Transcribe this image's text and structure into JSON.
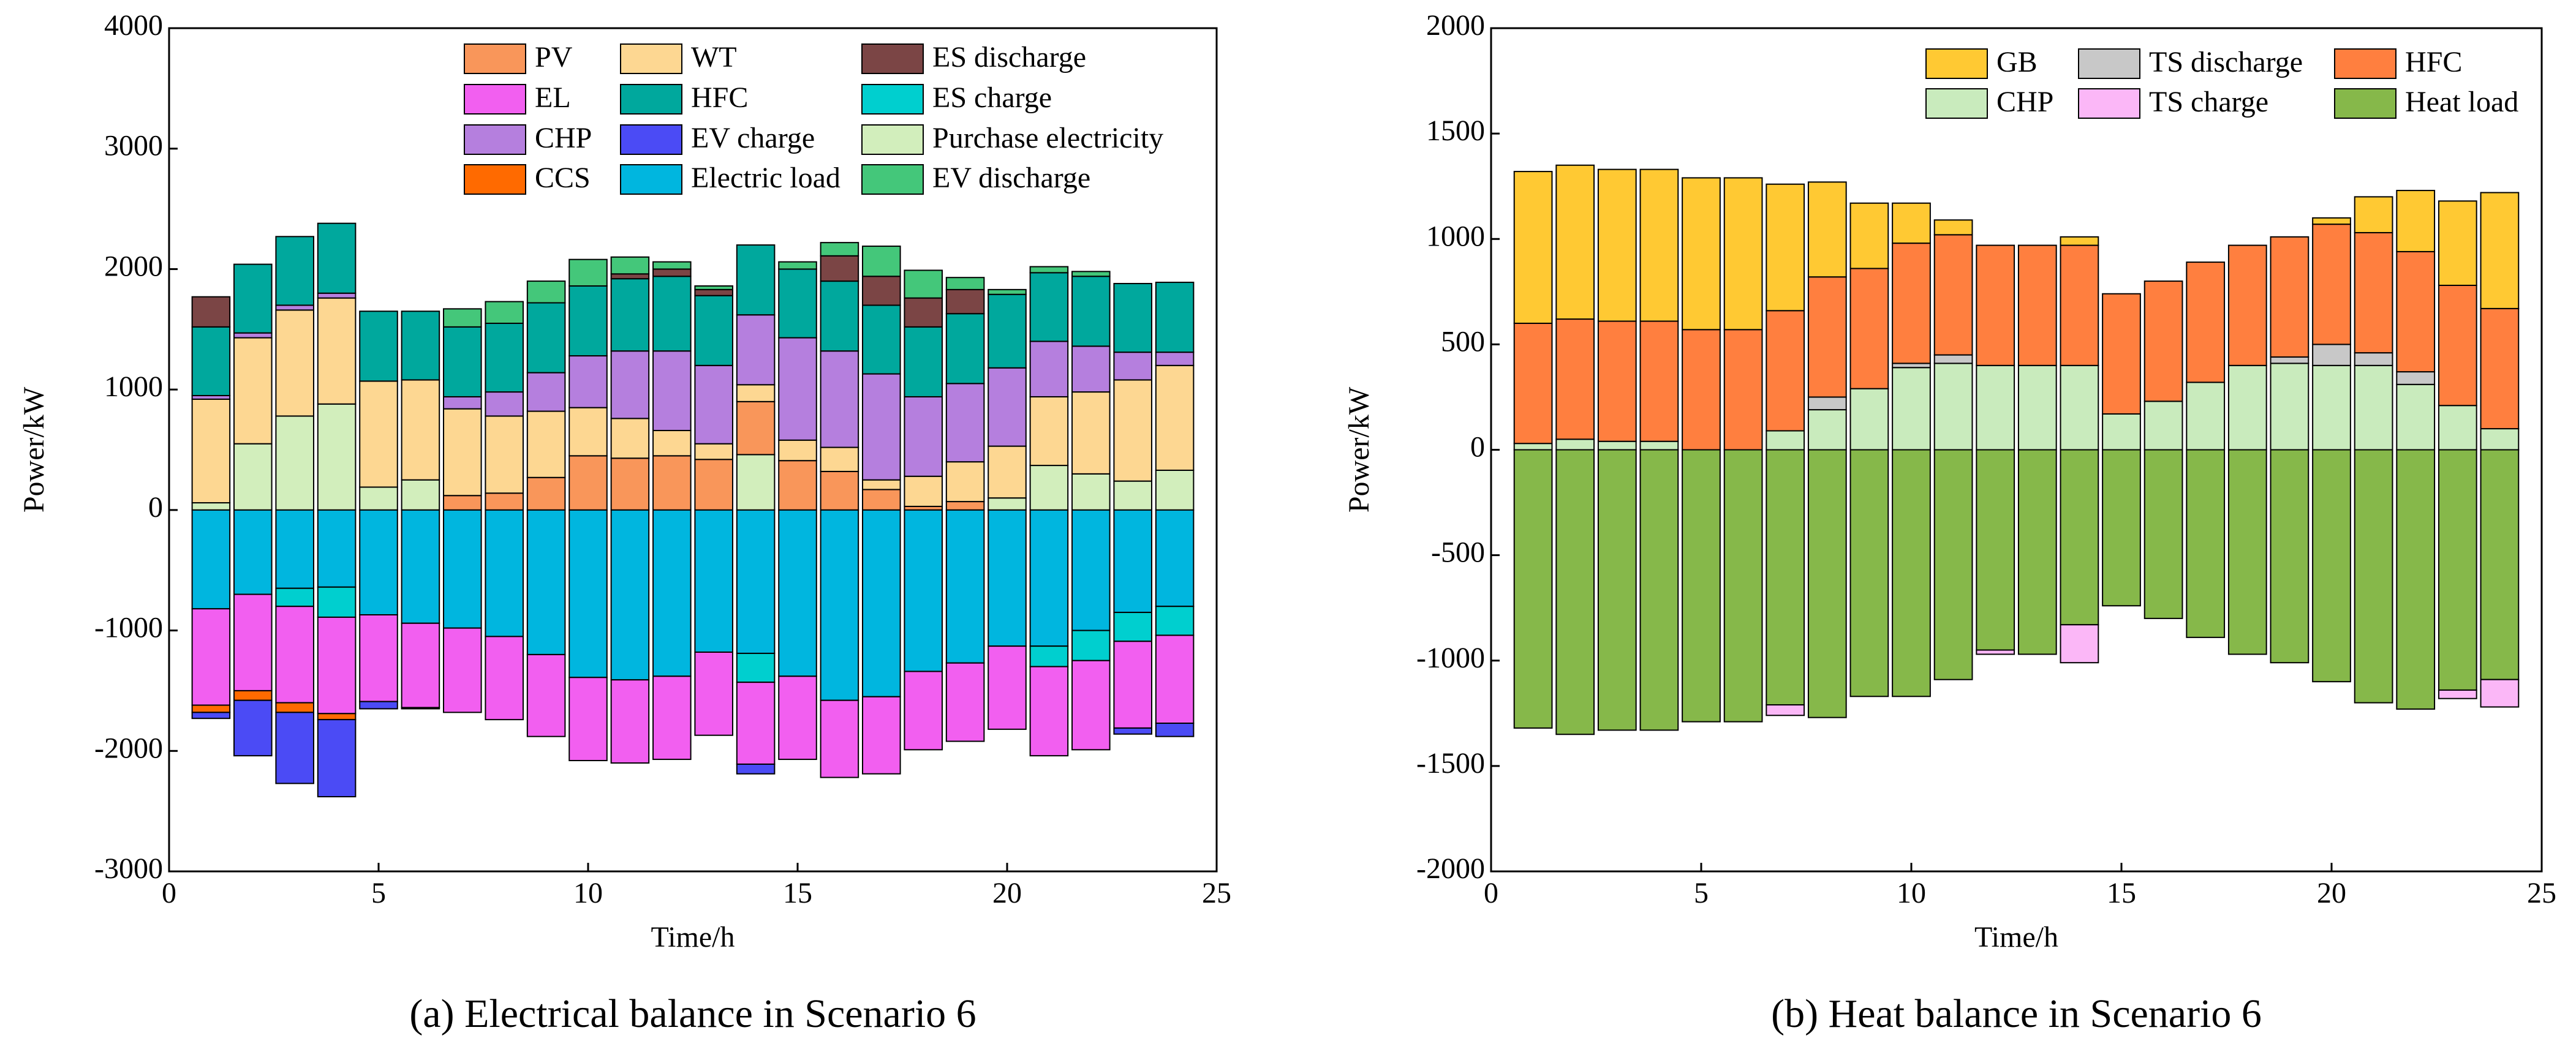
{
  "chart_data": [
    {
      "type": "stacked_bar",
      "caption": "(a) Electrical balance in Scenario 6",
      "xlabel": "Time/h",
      "ylabel": "Power/kW",
      "x": [
        1,
        2,
        3,
        4,
        5,
        6,
        7,
        8,
        9,
        10,
        11,
        12,
        13,
        14,
        15,
        16,
        17,
        18,
        19,
        20,
        21,
        22,
        23,
        24
      ],
      "xlim": [
        0,
        25
      ],
      "xticks": [
        0,
        5,
        10,
        15,
        20,
        25
      ],
      "ylim": [
        -3000,
        4000
      ],
      "yticks": [
        -3000,
        -2000,
        -1000,
        0,
        1000,
        2000,
        3000,
        4000
      ],
      "series": [
        {
          "name": "PV",
          "color": "#f9965a",
          "values": [
            0,
            0,
            0,
            0,
            0,
            0,
            120,
            140,
            270,
            450,
            430,
            450,
            420,
            440,
            410,
            320,
            170,
            30,
            70,
            0,
            0,
            0,
            0,
            0
          ]
        },
        {
          "name": "EL",
          "color": "#f25ff0",
          "values": [
            -800,
            -800,
            -800,
            -800,
            -720,
            -700,
            -700,
            -690,
            -680,
            -690,
            -690,
            -690,
            -690,
            -680,
            -690,
            -640,
            -640,
            -650,
            -650,
            -690,
            -740,
            -740,
            -720,
            -730
          ]
        },
        {
          "name": "CHP",
          "color": "#b57fde",
          "values": [
            30,
            40,
            40,
            40,
            0,
            0,
            100,
            200,
            320,
            430,
            560,
            660,
            650,
            580,
            850,
            800,
            880,
            660,
            650,
            650,
            460,
            380,
            230,
            110
          ]
        },
        {
          "name": "CCS",
          "color": "#ff6a00",
          "values": [
            -60,
            -80,
            -80,
            -50,
            0,
            -10,
            0,
            0,
            0,
            0,
            0,
            0,
            0,
            0,
            0,
            0,
            0,
            0,
            0,
            0,
            0,
            0,
            0,
            0
          ]
        },
        {
          "name": "WT",
          "color": "#fdd792",
          "values": [
            860,
            880,
            880,
            880,
            880,
            830,
            720,
            640,
            550,
            400,
            330,
            210,
            130,
            140,
            170,
            200,
            80,
            250,
            330,
            430,
            570,
            680,
            840,
            870
          ]
        },
        {
          "name": "HFC",
          "color": "#00a89d",
          "values": [
            570,
            570,
            570,
            580,
            580,
            570,
            580,
            570,
            580,
            580,
            600,
            620,
            580,
            580,
            570,
            580,
            570,
            580,
            580,
            610,
            570,
            580,
            570,
            580
          ]
        },
        {
          "name": "EV charge",
          "color": "#4b4bf5",
          "values": [
            -50,
            -460,
            -590,
            -640,
            -60,
            0,
            0,
            0,
            0,
            0,
            0,
            0,
            0,
            -80,
            0,
            0,
            0,
            0,
            0,
            0,
            0,
            0,
            -50,
            -110
          ]
        },
        {
          "name": "Electric load",
          "color": "#00b6df",
          "values": [
            -820,
            -700,
            -650,
            -640,
            -870,
            -940,
            -980,
            -1050,
            -1200,
            -1390,
            -1410,
            -1380,
            -1180,
            -1190,
            -1380,
            -1580,
            -1550,
            -1340,
            -1270,
            -1130,
            -1130,
            -1000,
            -850,
            -800
          ]
        },
        {
          "name": "ES discharge",
          "color": "#7b4545",
          "values": [
            250,
            0,
            0,
            0,
            0,
            0,
            0,
            0,
            0,
            0,
            40,
            60,
            50,
            0,
            0,
            210,
            240,
            240,
            200,
            0,
            0,
            0,
            0,
            0
          ]
        },
        {
          "name": "ES charge",
          "color": "#00cfcf",
          "values": [
            0,
            0,
            -150,
            -250,
            0,
            0,
            0,
            0,
            0,
            0,
            0,
            0,
            0,
            -240,
            0,
            0,
            0,
            0,
            0,
            0,
            -170,
            -250,
            -240,
            -240
          ]
        },
        {
          "name": "Purchase electricity",
          "color": "#d2eebc",
          "values": [
            60,
            550,
            780,
            880,
            190,
            250,
            0,
            0,
            0,
            0,
            0,
            0,
            0,
            460,
            0,
            0,
            0,
            0,
            0,
            100,
            370,
            300,
            240,
            330
          ]
        },
        {
          "name": "EV discharge",
          "color": "#44c77a",
          "values": [
            0,
            0,
            0,
            0,
            0,
            0,
            150,
            180,
            180,
            220,
            140,
            60,
            30,
            0,
            60,
            110,
            250,
            230,
            100,
            40,
            50,
            40,
            0,
            0
          ]
        }
      ]
    },
    {
      "type": "stacked_bar",
      "caption": "(b) Heat balance in Scenario 6",
      "xlabel": "Time/h",
      "ylabel": "Power/kW",
      "x": [
        1,
        2,
        3,
        4,
        5,
        6,
        7,
        8,
        9,
        10,
        11,
        12,
        13,
        14,
        15,
        16,
        17,
        18,
        19,
        20,
        21,
        22,
        23,
        24
      ],
      "xlim": [
        0,
        25
      ],
      "xticks": [
        0,
        5,
        10,
        15,
        20,
        25
      ],
      "ylim": [
        -2000,
        2000
      ],
      "yticks": [
        -2000,
        -1500,
        -1000,
        -500,
        0,
        500,
        1000,
        1500,
        2000
      ],
      "series": [
        {
          "name": "GB",
          "color": "#ffc933",
          "values": [
            720,
            730,
            720,
            720,
            720,
            720,
            600,
            450,
            310,
            190,
            70,
            0,
            0,
            40,
            0,
            0,
            0,
            0,
            0,
            30,
            170,
            290,
            400,
            550
          ]
        },
        {
          "name": "CHP",
          "color": "#c9ebbd",
          "values": [
            30,
            50,
            40,
            40,
            0,
            0,
            90,
            190,
            290,
            390,
            410,
            400,
            400,
            400,
            170,
            230,
            320,
            400,
            410,
            400,
            400,
            310,
            210,
            100
          ]
        },
        {
          "name": "TS discharge",
          "color": "#c8c8c8",
          "values": [
            0,
            0,
            0,
            0,
            0,
            0,
            0,
            60,
            0,
            20,
            40,
            0,
            0,
            0,
            0,
            0,
            0,
            0,
            30,
            100,
            60,
            60,
            0,
            0
          ]
        },
        {
          "name": "TS charge",
          "color": "#fbb7f7",
          "values": [
            0,
            0,
            0,
            0,
            0,
            0,
            -50,
            0,
            0,
            0,
            0,
            -20,
            0,
            -180,
            0,
            0,
            0,
            0,
            0,
            0,
            0,
            0,
            -40,
            -130
          ]
        },
        {
          "name": "HFC",
          "color": "#ff7f3f",
          "values": [
            570,
            570,
            570,
            570,
            570,
            570,
            570,
            570,
            570,
            570,
            570,
            570,
            570,
            570,
            570,
            570,
            570,
            570,
            570,
            570,
            570,
            570,
            570,
            570
          ]
        },
        {
          "name": "Heat load",
          "color": "#86b84a",
          "values": [
            -1320,
            -1350,
            -1330,
            -1330,
            -1290,
            -1290,
            -1210,
            -1270,
            -1170,
            -1170,
            -1090,
            -950,
            -970,
            -830,
            -740,
            -800,
            -890,
            -970,
            -1010,
            -1100,
            -1200,
            -1230,
            -1140,
            -1090
          ]
        }
      ]
    }
  ]
}
